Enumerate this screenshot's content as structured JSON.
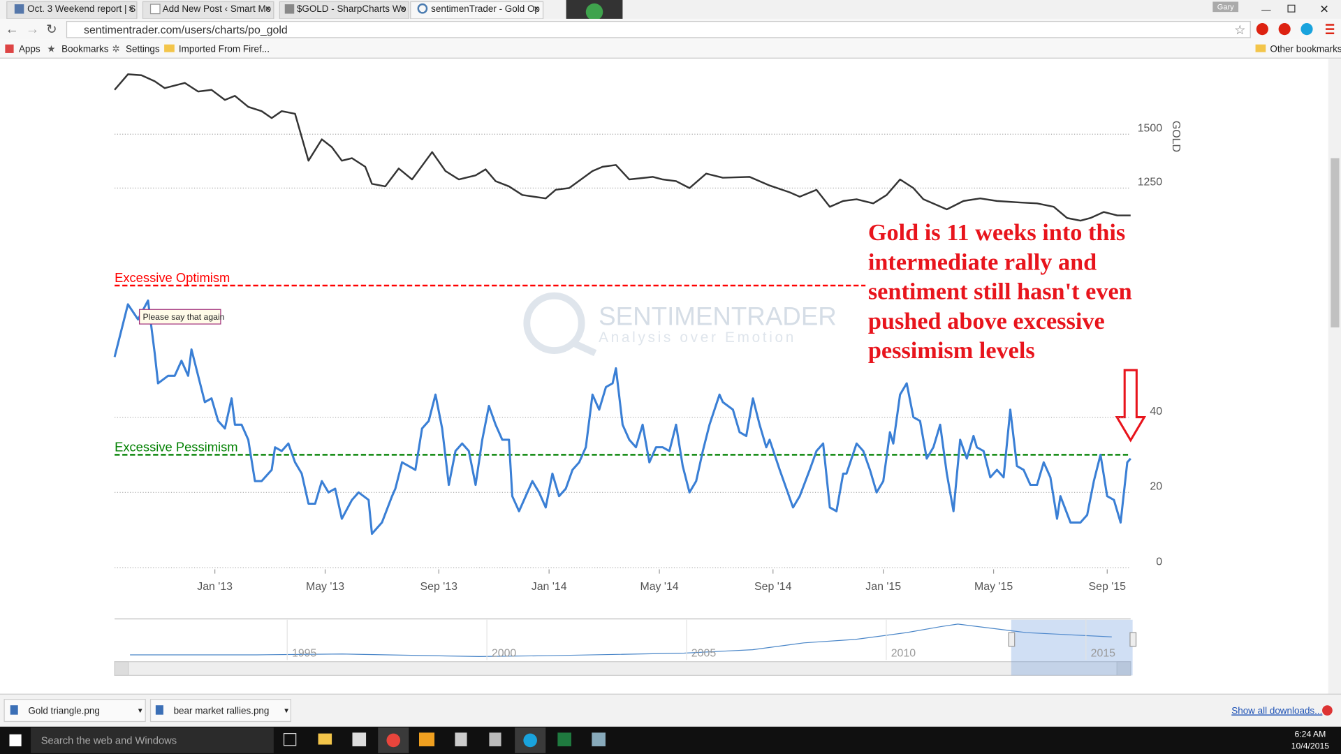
{
  "browser": {
    "tabs": [
      "Oct. 3 Weekend report | S",
      "Add New Post ‹ Smart Mo",
      "$GOLD - SharpCharts Wo",
      "sentimenTrader - Gold Op"
    ],
    "user": "Gary",
    "url": "sentimentrader.com/users/charts/po_gold",
    "bookmarks": [
      "Apps",
      "Bookmarks",
      "Settings",
      "Imported From Firef..."
    ],
    "other_bookmarks": "Other bookmarks"
  },
  "chart_data": [
    {
      "type": "line",
      "y_label": "GOLD",
      "color": "#333333",
      "grid": true,
      "xlim": [
        2012.7,
        2015.74
      ],
      "ylim": [
        1100,
        1800
      ],
      "yticks": [
        1250,
        1500
      ],
      "x": [
        2012.7,
        2012.74,
        2012.78,
        2012.82,
        2012.85,
        2012.91,
        2012.95,
        2012.99,
        2013.03,
        2013.06,
        2013.1,
        2013.14,
        2013.17,
        2013.2,
        2013.24,
        2013.28,
        2013.32,
        2013.35,
        2013.38,
        2013.41,
        2013.45,
        2013.47,
        2013.51,
        2013.55,
        2013.59,
        2013.65,
        2013.69,
        2013.73,
        2013.78,
        2013.81,
        2013.84,
        2013.88,
        2013.92,
        2013.99,
        2014.02,
        2014.06,
        2014.13,
        2014.16,
        2014.2,
        2014.24,
        2014.31,
        2014.34,
        2014.38,
        2014.42,
        2014.47,
        2014.52,
        2014.6,
        2014.66,
        2014.72,
        2014.75,
        2014.8,
        2014.84,
        2014.88,
        2014.92,
        2014.97,
        2015.01,
        2015.05,
        2015.09,
        2015.12,
        2015.19,
        2015.24,
        2015.29,
        2015.34,
        2015.41,
        2015.46,
        2015.51,
        2015.55,
        2015.59,
        2015.62,
        2015.66,
        2015.7,
        2015.74
      ],
      "values": [
        1706,
        1778,
        1774,
        1746,
        1714,
        1738,
        1698,
        1706,
        1659,
        1678,
        1627,
        1607,
        1575,
        1607,
        1595,
        1377,
        1476,
        1440,
        1377,
        1389,
        1349,
        1270,
        1258,
        1341,
        1290,
        1417,
        1329,
        1290,
        1309,
        1337,
        1282,
        1258,
        1218,
        1202,
        1242,
        1250,
        1329,
        1349,
        1357,
        1290,
        1302,
        1290,
        1282,
        1250,
        1317,
        1298,
        1302,
        1262,
        1230,
        1210,
        1242,
        1163,
        1190,
        1198,
        1179,
        1218,
        1290,
        1250,
        1198,
        1151,
        1190,
        1202,
        1190,
        1183,
        1179,
        1163,
        1111,
        1099,
        1111,
        1139,
        1123,
        1123
      ]
    },
    {
      "type": "line",
      "color": "#3a7fd5",
      "grid": true,
      "xlim": [
        2012.7,
        2015.74
      ],
      "ylim": [
        0,
        75
      ],
      "yticks": [
        0,
        20,
        40
      ],
      "xticks": [
        {
          "value": 2013.0,
          "label": "Jan '13"
        },
        {
          "value": 2013.33,
          "label": "May '13"
        },
        {
          "value": 2013.67,
          "label": "Sep '13"
        },
        {
          "value": 2014.0,
          "label": "Jan '14"
        },
        {
          "value": 2014.33,
          "label": "May '14"
        },
        {
          "value": 2014.67,
          "label": "Sep '14"
        },
        {
          "value": 2015.0,
          "label": "Jan '15"
        },
        {
          "value": 2015.33,
          "label": "May '15"
        },
        {
          "value": 2015.67,
          "label": "Sep '15"
        }
      ],
      "reference_lines": [
        {
          "label": "Excessive Optimism",
          "value": 75,
          "color": "#ff0000"
        },
        {
          "label": "Excessive Pessimism",
          "value": 30,
          "color": "#008000"
        }
      ],
      "tooltip": "Please say that again",
      "annotation": [
        "Gold is 11 weeks into this",
        "intermediate rally and",
        "sentiment still hasn't even",
        "pushed above excessive",
        "pessimism levels"
      ],
      "x": [
        2012.7,
        2012.74,
        2012.77,
        2012.8,
        2012.82,
        2012.83,
        2012.86,
        2012.88,
        2012.9,
        2012.92,
        2012.93,
        2012.95,
        2012.97,
        2012.99,
        2013.01,
        2013.03,
        2013.05,
        2013.06,
        2013.08,
        2013.1,
        2013.12,
        2013.14,
        2013.17,
        2013.18,
        2013.2,
        2013.22,
        2013.24,
        2013.26,
        2013.28,
        2013.3,
        2013.32,
        2013.34,
        2013.36,
        2013.38,
        2013.41,
        2013.43,
        2013.46,
        2013.47,
        2013.5,
        2013.53,
        2013.54,
        2013.56,
        2013.58,
        2013.6,
        2013.62,
        2013.64,
        2013.66,
        2013.68,
        2013.7,
        2013.72,
        2013.74,
        2013.76,
        2013.78,
        2013.8,
        2013.82,
        2013.84,
        2013.86,
        2013.88,
        2013.89,
        2013.91,
        2013.93,
        2013.95,
        2013.97,
        2013.99,
        2014.01,
        2014.03,
        2014.05,
        2014.07,
        2014.09,
        2014.11,
        2014.13,
        2014.15,
        2014.17,
        2014.19,
        2014.2,
        2014.22,
        2014.24,
        2014.26,
        2014.28,
        2014.3,
        2014.32,
        2014.34,
        2014.36,
        2014.38,
        2014.4,
        2014.42,
        2014.44,
        2014.46,
        2014.48,
        2014.51,
        2014.52,
        2014.55,
        2014.57,
        2014.59,
        2014.61,
        2014.63,
        2014.65,
        2014.66,
        2014.69,
        2014.71,
        2014.73,
        2014.75,
        2014.78,
        2014.8,
        2014.82,
        2014.84,
        2014.86,
        2014.88,
        2014.89,
        2014.92,
        2014.94,
        2014.96,
        2014.98,
        2015.0,
        2015.02,
        2015.03,
        2015.05,
        2015.07,
        2015.09,
        2015.11,
        2015.13,
        2015.15,
        2015.17,
        2015.19,
        2015.21,
        2015.23,
        2015.25,
        2015.27,
        2015.28,
        2015.3,
        2015.32,
        2015.34,
        2015.36,
        2015.38,
        2015.4,
        2015.42,
        2015.44,
        2015.46,
        2015.48,
        2015.5,
        2015.52,
        2015.53,
        2015.56,
        2015.59,
        2015.61,
        2015.63,
        2015.65,
        2015.67,
        2015.69,
        2015.71,
        2015.73,
        2015.74
      ],
      "values": [
        56,
        70,
        66,
        71,
        57,
        49,
        51,
        51,
        55,
        51,
        58,
        51,
        44,
        45,
        39,
        37,
        45,
        38,
        38,
        34,
        23,
        23,
        26,
        32,
        31,
        33,
        28,
        25,
        17,
        17,
        23,
        20,
        21,
        13,
        18,
        20,
        18,
        9,
        12,
        19,
        21,
        28,
        27,
        26,
        37,
        39,
        46,
        37,
        22,
        31,
        33,
        31,
        22,
        34,
        43,
        38,
        34,
        34,
        19,
        15,
        19,
        23,
        20,
        16,
        25,
        19,
        21,
        26,
        28,
        32,
        46,
        42,
        48,
        49,
        53,
        38,
        34,
        32,
        38,
        28,
        32,
        32,
        31,
        38,
        27,
        20,
        23,
        31,
        38,
        46,
        44,
        42,
        36,
        35,
        45,
        38,
        32,
        34,
        26,
        21,
        16,
        19,
        26,
        31,
        33,
        16,
        15,
        25,
        25,
        33,
        31,
        26,
        20,
        23,
        36,
        33,
        46,
        49,
        40,
        39,
        29,
        32,
        38,
        25,
        15,
        34,
        29,
        35,
        32,
        31,
        24,
        26,
        24,
        42,
        27,
        26,
        22,
        22,
        28,
        24,
        13,
        19,
        12,
        12,
        14,
        23,
        30,
        19,
        18,
        12,
        28,
        29
      ]
    }
  ],
  "navigator": {
    "xlim": [
      1990.25,
      2015.69
    ],
    "xticks": [
      1995,
      2000,
      2005,
      2010,
      2015
    ]
  },
  "watermark": {
    "title": "SENTIMENTRADER",
    "subtitle": "Analysis over Emotion"
  },
  "downloads": {
    "items": [
      "Gold triangle.png",
      "bear market rallies.png"
    ],
    "show_all": "Show all downloads..."
  },
  "taskbar": {
    "search": "Search the web and Windows",
    "time": "6:24 AM",
    "date": "10/4/2015"
  }
}
